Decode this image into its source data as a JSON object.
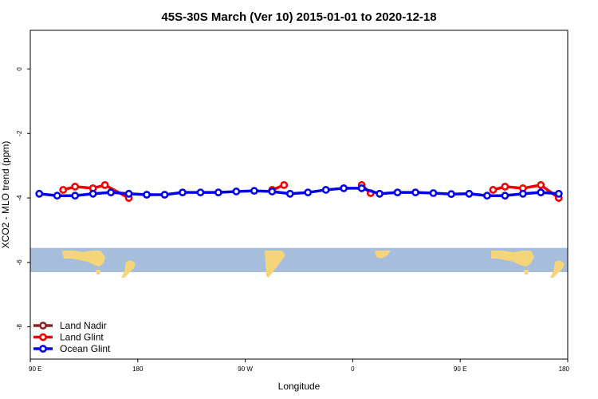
{
  "chart_data": {
    "type": "line",
    "title": "45S-30S March (Ver 10)   2015-01-01 to 2020-12-18",
    "xlabel": "Longitude",
    "ylabel": "XCO2 - MLO trend (ppm)",
    "xlim": [
      90,
      540
    ],
    "ylim": [
      -9,
      1.2
    ],
    "x_ticks": [
      {
        "value": 90,
        "label": "90 E"
      },
      {
        "value": 180,
        "label": "180"
      },
      {
        "value": 270,
        "label": "90 W"
      },
      {
        "value": 360,
        "label": "0"
      },
      {
        "value": 450,
        "label": "90 E"
      },
      {
        "value": 540,
        "label": "180"
      }
    ],
    "y_ticks": [
      {
        "value": 0,
        "label": "0"
      },
      {
        "value": -2,
        "label": "-2"
      },
      {
        "value": -4,
        "label": "-4"
      },
      {
        "value": -6,
        "label": "-6"
      },
      {
        "value": -8,
        "label": "-8"
      }
    ],
    "grid": false,
    "legend_position": "bottom-left",
    "map_band": {
      "y_top": -5.55,
      "y_bottom": -6.3
    },
    "series": [
      {
        "name": "Land Nadir",
        "color": "#8b2323",
        "segments": []
      },
      {
        "name": "Land Glint",
        "color": "#ee0000",
        "segments": [
          {
            "x": [
              117.5,
              127.5,
              142.5,
              152.5,
              172.5
            ],
            "y": [
              -3.75,
              -3.65,
              -3.7,
              -3.6,
              -4.0
            ]
          },
          {
            "x": [
              292.5,
              302.5
            ],
            "y": [
              -3.75,
              -3.6
            ]
          },
          {
            "x": [
              367.5,
              375
            ],
            "y": [
              -3.6,
              -3.85
            ]
          },
          {
            "x": [
              477.5,
              487.5,
              502.5,
              517.5,
              532.5
            ],
            "y": [
              -3.75,
              -3.65,
              -3.7,
              -3.6,
              -4.0
            ]
          }
        ]
      },
      {
        "name": "Ocean Glint",
        "color": "#0000ee",
        "segments": [
          {
            "x": [
              97.5,
              112.5,
              127.5,
              142.5,
              157.5,
              172.5,
              187.5,
              202.5,
              217.5,
              232.5,
              247.5,
              262.5,
              277.5,
              292.5,
              307.5,
              322.5,
              337.5,
              352.5,
              367.5,
              382.5,
              397.5,
              412.5,
              427.5,
              442.5,
              457.5,
              472.5,
              487.5,
              502.5,
              517.5,
              532.5
            ],
            "y": [
              -3.87,
              -3.93,
              -3.93,
              -3.87,
              -3.83,
              -3.87,
              -3.9,
              -3.9,
              -3.83,
              -3.83,
              -3.83,
              -3.8,
              -3.78,
              -3.8,
              -3.87,
              -3.83,
              -3.75,
              -3.7,
              -3.7,
              -3.87,
              -3.83,
              -3.83,
              -3.85,
              -3.88,
              -3.87,
              -3.93,
              -3.93,
              -3.87,
              -3.83,
              -3.87
            ]
          }
        ]
      }
    ]
  }
}
